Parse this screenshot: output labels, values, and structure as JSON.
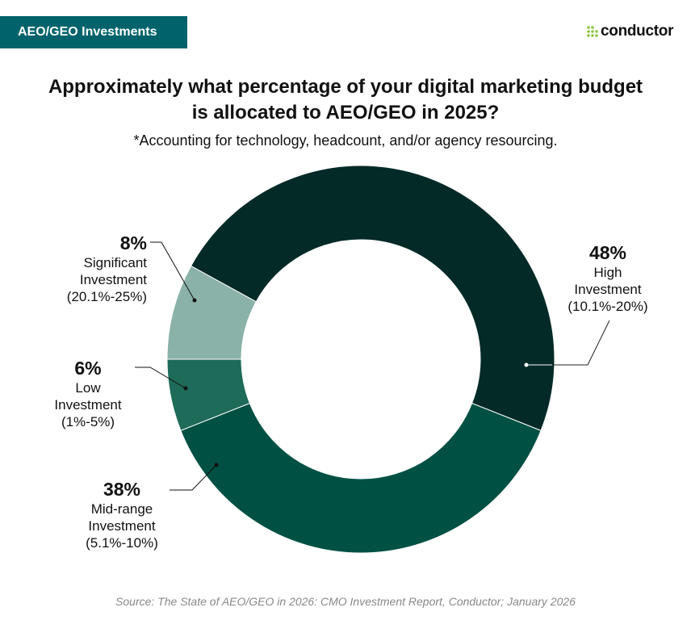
{
  "badge": "AEO/GEO Investments",
  "logo": "conductor",
  "colors": {
    "badge": "#00636b",
    "logo_green": "#8dc63f"
  },
  "chart_data": {
    "type": "pie",
    "donut": true,
    "title": "Approximately what percentage of your digital marketing budget is allocated to AEO/GEO in 2025?",
    "subtitle": "*Accounting for technology, headcount, and/or agency resourcing.",
    "slices": [
      {
        "label": "Significant Investment (20.1%-25%)",
        "name1": "Significant",
        "name2": "Investment",
        "range": "(20.1%-25%)",
        "value": 8,
        "pct": "8%",
        "color": "#8ab2a8"
      },
      {
        "label": "High Investment (10.1%-20%)",
        "name1": "High",
        "name2": "Investment",
        "range": "(10.1%-20%)",
        "value": 48,
        "pct": "48%",
        "color": "#032a27"
      },
      {
        "label": "Mid-range Investment (5.1%-10%)",
        "name1": "Mid-range",
        "name2": "Investment",
        "range": "(5.1%-10%)",
        "value": 38,
        "pct": "38%",
        "color": "#005143"
      },
      {
        "label": "Low Investment (1%-5%)",
        "name1": "Low",
        "name2": "Investment",
        "range": "(1%-5%)",
        "value": 6,
        "pct": "6%",
        "color": "#1f6b5a"
      }
    ],
    "start_angle_deg": 270,
    "source": "Source: The State of AEO/GEO in 2026: CMO Investment Report, Conductor; January 2026"
  }
}
